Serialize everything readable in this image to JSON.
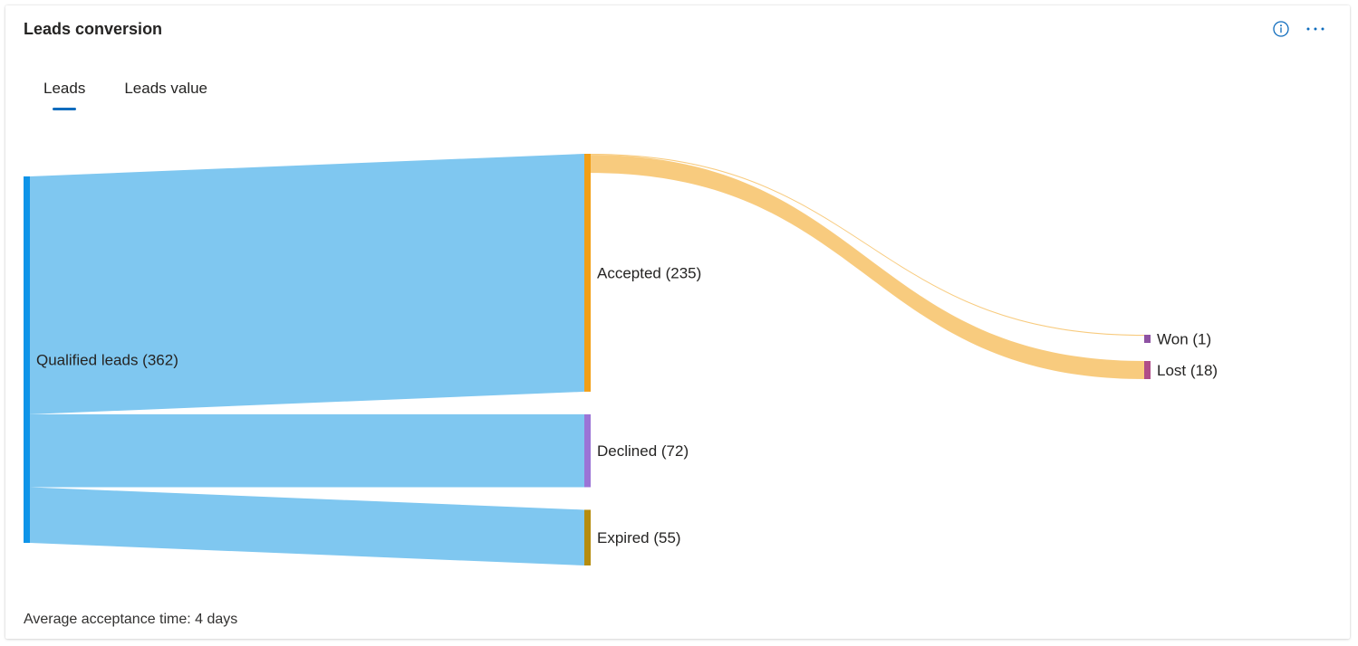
{
  "card": {
    "title": "Leads conversion",
    "info_icon": "info-icon",
    "more_icon": "more-options-icon"
  },
  "tabs": [
    {
      "label": "Leads",
      "active": true
    },
    {
      "label": "Leads value",
      "active": false
    }
  ],
  "chart_data": {
    "type": "sankey",
    "nodes": [
      {
        "id": "qualified",
        "label": "Qualified leads (362)",
        "value": 362,
        "column": 0,
        "color": "#0f94e8"
      },
      {
        "id": "accepted",
        "label": "Accepted (235)",
        "value": 235,
        "column": 1,
        "color": "#f29f16"
      },
      {
        "id": "declined",
        "label": "Declined (72)",
        "value": 72,
        "column": 1,
        "color": "#9b74d6"
      },
      {
        "id": "expired",
        "label": "Expired (55)",
        "value": 55,
        "column": 1,
        "color": "#b68c0e"
      },
      {
        "id": "won",
        "label": "Won (1)",
        "value": 1,
        "column": 2,
        "color": "#8e52a3"
      },
      {
        "id": "lost",
        "label": "Lost (18)",
        "value": 18,
        "column": 2,
        "color": "#b04c88"
      }
    ],
    "links": [
      {
        "source": "qualified",
        "target": "accepted",
        "value": 235,
        "color": "#7fc7f0"
      },
      {
        "source": "qualified",
        "target": "declined",
        "value": 72,
        "color": "#7fc7f0"
      },
      {
        "source": "qualified",
        "target": "expired",
        "value": 55,
        "color": "#7fc7f0"
      },
      {
        "source": "accepted",
        "target": "won",
        "value": 1,
        "color": "#f8cb7e"
      },
      {
        "source": "accepted",
        "target": "lost",
        "value": 18,
        "color": "#f8cb7e"
      }
    ]
  },
  "footer": {
    "text": "Average acceptance time: 4 days"
  }
}
